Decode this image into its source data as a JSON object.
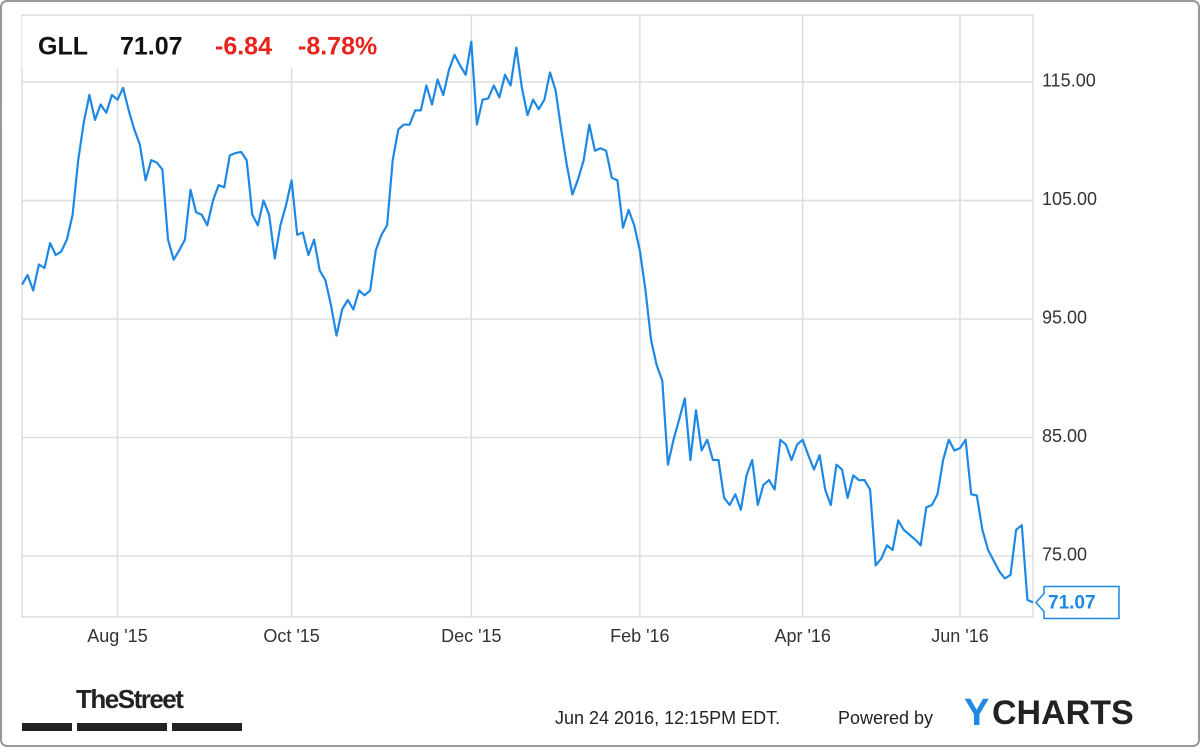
{
  "chart_data": {
    "type": "line",
    "ticker": "GLL",
    "price": "71.07",
    "change": "-6.84",
    "change_percent": "-8.78%",
    "color": "#1e88e5",
    "values": [
      97.9,
      98.7,
      97.4,
      99.6,
      99.3,
      101.4,
      100.4,
      100.7,
      101.7,
      103.8,
      108.4,
      111.6,
      113.9,
      111.8,
      113.1,
      112.4,
      113.9,
      113.5,
      114.5,
      112.6,
      111.0,
      109.7,
      106.7,
      108.4,
      108.2,
      107.6,
      101.7,
      100.0,
      100.8,
      101.7,
      105.9,
      104.0,
      103.8,
      102.9,
      105.0,
      106.3,
      106.1,
      108.8,
      109.0,
      109.1,
      108.4,
      103.8,
      102.9,
      105.0,
      103.8,
      100.1,
      102.9,
      104.6,
      106.7,
      102.1,
      102.3,
      100.4,
      101.7,
      99.1,
      98.3,
      96.2,
      93.6,
      95.8,
      96.6,
      95.8,
      97.4,
      97.0,
      97.4,
      100.8,
      102.1,
      102.9,
      108.4,
      111.0,
      111.4,
      111.4,
      112.6,
      112.6,
      114.7,
      113.1,
      115.2,
      113.9,
      116.0,
      117.3,
      116.4,
      115.6,
      118.4,
      111.4,
      113.5,
      113.6,
      114.7,
      113.7,
      115.6,
      114.7,
      117.9,
      114.5,
      112.2,
      113.5,
      112.7,
      113.5,
      115.8,
      114.3,
      111.0,
      108.0,
      105.5,
      106.8,
      108.4,
      111.4,
      109.2,
      109.4,
      109.2,
      106.9,
      106.7,
      102.7,
      104.2,
      102.9,
      100.8,
      97.4,
      93.2,
      91.1,
      89.8,
      82.7,
      84.8,
      86.5,
      88.3,
      83.1,
      87.3,
      83.9,
      84.8,
      83.1,
      83.1,
      79.9,
      79.3,
      80.2,
      78.9,
      81.8,
      83.1,
      79.3,
      81.0,
      81.4,
      80.6,
      84.8,
      84.4,
      83.1,
      84.4,
      84.8,
      83.5,
      82.3,
      83.5,
      80.6,
      79.3,
      82.7,
      82.3,
      79.9,
      81.8,
      81.4,
      81.4,
      80.6,
      74.2,
      74.8,
      75.9,
      75.5,
      78.0,
      77.2,
      76.8,
      76.4,
      75.9,
      79.1,
      79.3,
      80.2,
      83.1,
      84.8,
      83.9,
      84.1,
      84.8,
      80.2,
      80.1,
      77.2,
      75.5,
      74.6,
      73.7,
      73.1,
      73.4,
      77.2,
      77.6,
      71.3,
      71.07
    ],
    "xticks": [
      {
        "value": 17,
        "label": "Aug '15"
      },
      {
        "value": 48,
        "label": "Oct '15"
      },
      {
        "value": 80,
        "label": "Dec '15"
      },
      {
        "value": 110,
        "label": "Feb '16"
      },
      {
        "value": 139,
        "label": "Apr '16"
      },
      {
        "value": 167,
        "label": "Jun '16"
      }
    ],
    "ylim": [
      69.85,
      120.65
    ],
    "yticks": [
      {
        "value": 75,
        "label": "75.00"
      },
      {
        "value": 85,
        "label": "85.00"
      },
      {
        "value": 95,
        "label": "95.00"
      },
      {
        "value": 105,
        "label": "105.00"
      },
      {
        "value": 115,
        "label": "115.00"
      }
    ],
    "grid": true
  },
  "footer": {
    "brand": "TheStreet",
    "timestamp": "Jun 24 2016, 12:15PM EDT.",
    "powered_by": "Powered by",
    "logo_first": "Y",
    "logo_rest": "CHARTS"
  }
}
